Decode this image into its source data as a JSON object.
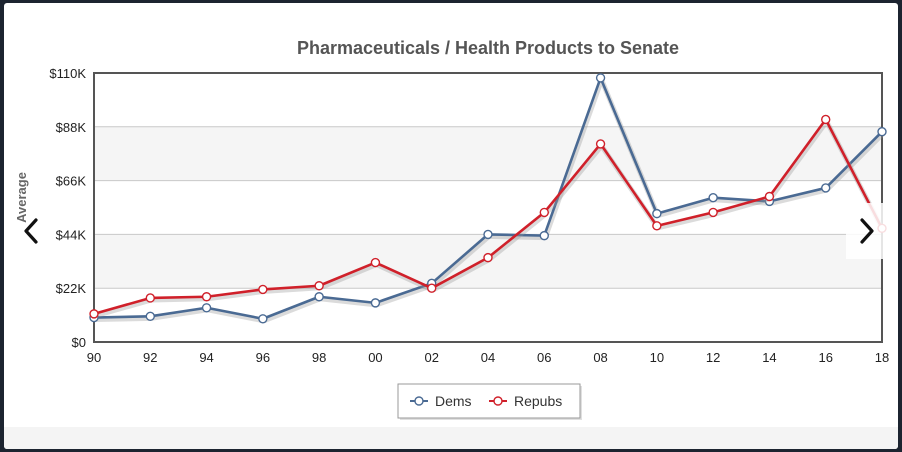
{
  "chart_data": {
    "type": "line",
    "title": "Pharmaceuticals / Health Products to Senate",
    "ylabel": "Average",
    "xlabel": "",
    "categories": [
      "90",
      "92",
      "94",
      "96",
      "98",
      "00",
      "02",
      "04",
      "06",
      "08",
      "10",
      "12",
      "14",
      "16",
      "18"
    ],
    "ylim": [
      0,
      110000
    ],
    "yticks": [
      0,
      22000,
      44000,
      66000,
      88000,
      110000
    ],
    "ytick_labels": [
      "$0",
      "$22K",
      "$44K",
      "$66K",
      "$88K",
      "$110K"
    ],
    "grid": true,
    "legend_position": "bottom-center",
    "series": [
      {
        "name": "Dems",
        "color": "#4a6a93",
        "values": [
          10000,
          10500,
          14000,
          9500,
          18500,
          16000,
          24000,
          44000,
          43500,
          108000,
          52500,
          59000,
          57500,
          63000,
          86000
        ]
      },
      {
        "name": "Repubs",
        "color": "#d0202a",
        "values": [
          11500,
          18000,
          18500,
          21500,
          23000,
          32500,
          22000,
          34500,
          53000,
          81000,
          47500,
          53000,
          59500,
          91000,
          46500
        ]
      }
    ]
  },
  "colors": {
    "plot_band": "#f5f5f5",
    "plot_border": "#555555",
    "grid_line": "#c8c8c8"
  },
  "nav": {
    "prev_icon": "chevron-left-icon",
    "next_icon": "chevron-right-icon"
  }
}
